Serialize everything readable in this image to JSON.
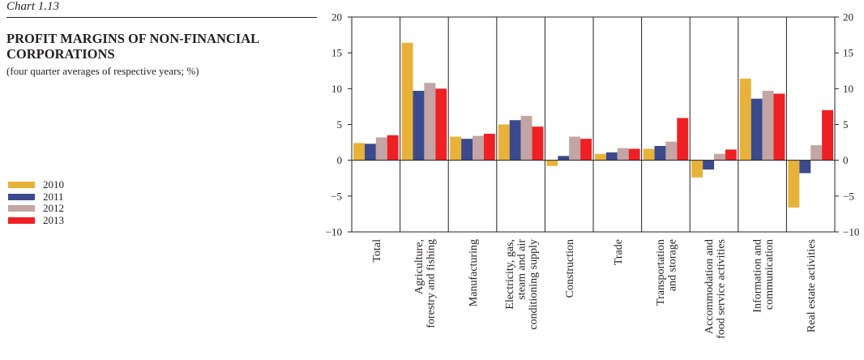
{
  "header": {
    "chart_number": "Chart 1.13",
    "title": "PROFIT MARGINS OF NON-FINANCIAL CORPORATIONS",
    "subtitle": "(four quarter averages of respective years; %)"
  },
  "legend": [
    {
      "label": "2010",
      "color": "#e8b23a"
    },
    {
      "label": "2011",
      "color": "#3b4a8c"
    },
    {
      "label": "2012",
      "color": "#c2a5a4"
    },
    {
      "label": "2013",
      "color": "#ee2024"
    }
  ],
  "chart_data": {
    "type": "bar",
    "ylim": [
      -10,
      20
    ],
    "yticks": [
      20,
      15,
      10,
      5,
      0,
      -5,
      -10
    ],
    "ytick_labels": [
      "20",
      "15",
      "10",
      "5",
      "0",
      "−5",
      "−10"
    ],
    "categories": [
      "Total",
      "Agriculture, forestry and fishing",
      "Manufacturing",
      "Electricity, gas, steam and air conditioning supply",
      "Construction",
      "Trade",
      "Transportation and storage",
      "Accommodation and food service activities",
      "Information and communication",
      "Real estate activities"
    ],
    "category_lines": [
      [
        "Total"
      ],
      [
        "Agriculture,",
        "forestry and fishing"
      ],
      [
        "Manufacturing"
      ],
      [
        "Electricity, gas,",
        "steam and air",
        "conditioning supply"
      ],
      [
        "Construction"
      ],
      [
        "Trade"
      ],
      [
        "Transportation",
        "and storage"
      ],
      [
        "Accommodation and",
        "food service activities"
      ],
      [
        "Information and",
        "communication"
      ],
      [
        "Real estate activities"
      ]
    ],
    "series": [
      {
        "name": "2010",
        "color": "#e8b23a",
        "values": [
          2.4,
          16.4,
          3.3,
          5.0,
          -0.8,
          0.9,
          1.6,
          -2.4,
          11.4,
          -6.6
        ]
      },
      {
        "name": "2011",
        "color": "#3b4a8c",
        "values": [
          2.3,
          9.7,
          3.0,
          5.6,
          0.6,
          1.1,
          2.0,
          -1.3,
          8.6,
          -1.8
        ]
      },
      {
        "name": "2012",
        "color": "#c2a5a4",
        "values": [
          3.2,
          10.8,
          3.4,
          6.2,
          3.3,
          1.7,
          2.6,
          0.9,
          9.7,
          2.1
        ]
      },
      {
        "name": "2013",
        "color": "#ee2024",
        "values": [
          3.5,
          10.0,
          3.7,
          4.7,
          3.0,
          1.6,
          5.9,
          1.5,
          9.3,
          7.0
        ]
      }
    ],
    "grid": "vertical"
  }
}
